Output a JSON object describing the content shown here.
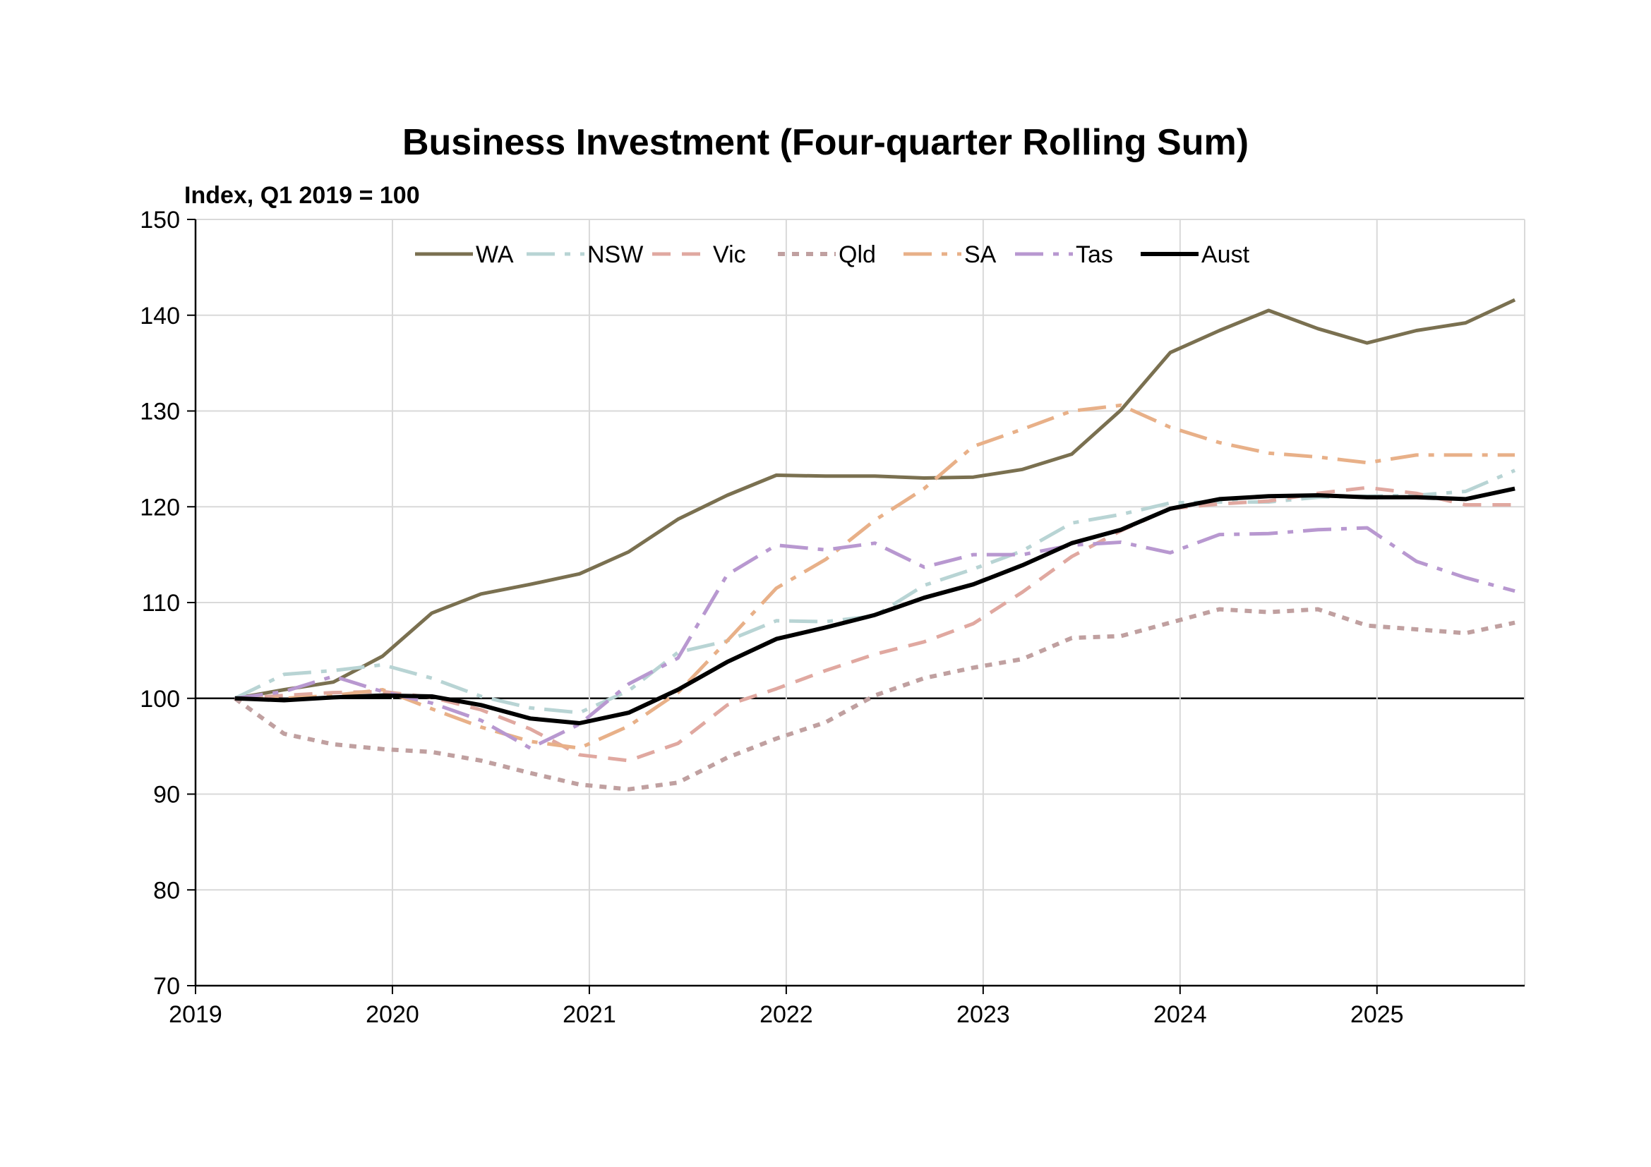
{
  "chart_data": {
    "type": "line",
    "title": "Business Investment (Four-quarter Rolling Sum)",
    "ylabel": "Index, Q1 2019 = 100",
    "xlabel": "",
    "ylim": [
      70,
      150
    ],
    "yticks": [
      70,
      80,
      90,
      100,
      110,
      120,
      130,
      140,
      150
    ],
    "xticks": [
      "2019",
      "2020",
      "2021",
      "2022",
      "2023",
      "2024",
      "2025"
    ],
    "grid": true,
    "legend_position": "top",
    "x": [
      "2019-Q1",
      "2019-Q2",
      "2019-Q3",
      "2019-Q4",
      "2020-Q1",
      "2020-Q2",
      "2020-Q3",
      "2020-Q4",
      "2021-Q1",
      "2021-Q2",
      "2021-Q3",
      "2021-Q4",
      "2022-Q1",
      "2022-Q2",
      "2022-Q3",
      "2022-Q4",
      "2023-Q1",
      "2023-Q2",
      "2023-Q3",
      "2023-Q4",
      "2024-Q1",
      "2024-Q2",
      "2024-Q3",
      "2024-Q4",
      "2025-Q1",
      "2025-Q2",
      "2025-Q3"
    ],
    "series": [
      {
        "name": "WA",
        "color": "#7a7050",
        "dash": "solid",
        "width": 5,
        "values": [
          100,
          100.9,
          101.7,
          104.4,
          108.9,
          110.9,
          111.9,
          113.0,
          115.3,
          118.7,
          121.2,
          123.3,
          123.2,
          123.2,
          123.0,
          123.1,
          123.9,
          125.5,
          130.1,
          136.1,
          138.4,
          140.5,
          138.6,
          137.1,
          138.4,
          139.2,
          141.6
        ]
      },
      {
        "name": "NSW",
        "color": "#b8d4d4",
        "dash": "dashdot",
        "width": 5,
        "values": [
          100,
          102.5,
          102.9,
          103.5,
          102.1,
          100.2,
          99.0,
          98.5,
          100.8,
          104.8,
          106.0,
          108.1,
          108.0,
          108.6,
          111.8,
          113.5,
          115.4,
          118.3,
          119.2,
          120.4,
          120.5,
          120.5,
          121.0,
          121.1,
          121.2,
          121.6,
          123.8
        ]
      },
      {
        "name": "Vic",
        "color": "#e0a8a0",
        "dash": "dash",
        "width": 5,
        "values": [
          100,
          100.3,
          100.6,
          100.7,
          100.1,
          98.8,
          96.8,
          94.1,
          93.5,
          95.3,
          99.3,
          101.0,
          102.9,
          104.6,
          105.9,
          107.8,
          111.1,
          114.8,
          117.5,
          119.8,
          120.3,
          120.6,
          121.4,
          122.0,
          121.4,
          120.2,
          120.2
        ]
      },
      {
        "name": "Qld",
        "color": "#c0a0a0",
        "dash": "dot",
        "width": 6,
        "values": [
          100,
          96.3,
          95.2,
          94.7,
          94.4,
          93.5,
          92.2,
          91.0,
          90.5,
          91.2,
          93.8,
          95.8,
          97.5,
          100.3,
          102.1,
          103.2,
          104.1,
          106.3,
          106.5,
          107.9,
          109.3,
          109.0,
          109.3,
          107.6,
          107.2,
          106.8,
          107.9
        ]
      },
      {
        "name": "SA",
        "color": "#e8b088",
        "dash": "dashdot",
        "width": 5,
        "values": [
          100,
          100.0,
          100.3,
          100.9,
          98.9,
          97.0,
          95.5,
          94.8,
          97.1,
          100.6,
          106.0,
          111.5,
          114.5,
          118.6,
          121.9,
          126.3,
          128.1,
          130.0,
          130.6,
          128.3,
          126.7,
          125.6,
          125.2,
          124.6,
          125.4,
          125.4,
          125.4
        ]
      },
      {
        "name": "Tas",
        "color": "#b898d0",
        "dash": "dashdot",
        "width": 5,
        "values": [
          100,
          100.7,
          102.3,
          100.7,
          99.5,
          97.7,
          94.8,
          97.3,
          101.5,
          104.2,
          112.9,
          116.0,
          115.5,
          116.2,
          113.7,
          115.0,
          115.0,
          116.0,
          116.3,
          115.2,
          117.1,
          117.2,
          117.6,
          117.8,
          114.3,
          112.6,
          111.2
        ]
      },
      {
        "name": "Aust",
        "color": "#000000",
        "dash": "solid",
        "width": 6,
        "values": [
          100,
          99.8,
          100.1,
          100.3,
          100.2,
          99.3,
          97.9,
          97.4,
          98.5,
          100.9,
          103.8,
          106.2,
          107.4,
          108.7,
          110.5,
          111.9,
          113.9,
          116.2,
          117.6,
          119.8,
          120.8,
          121.1,
          121.2,
          121.0,
          121.0,
          120.8,
          121.9
        ]
      }
    ]
  }
}
